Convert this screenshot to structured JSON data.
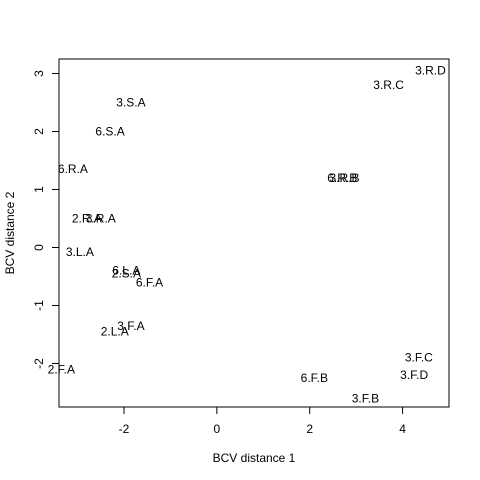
{
  "chart_data": {
    "type": "scatter",
    "title": "",
    "xlabel": "BCV distance 1",
    "ylabel": "BCV distance 2",
    "xlim": [
      -3.4,
      5.0
    ],
    "ylim": [
      -2.75,
      3.25
    ],
    "xticks": [
      -2,
      0,
      2,
      4
    ],
    "yticks": [
      -2,
      -1,
      0,
      1,
      2,
      3
    ],
    "grid": false,
    "marker": "text-label",
    "points": [
      {
        "label": "3.R.D",
        "x": 4.6,
        "y": 3.05
      },
      {
        "label": "3.R.C",
        "x": 3.7,
        "y": 2.8
      },
      {
        "label": "3.S.A",
        "x": -1.85,
        "y": 2.5
      },
      {
        "label": "6.S.A",
        "x": -2.3,
        "y": 2.0
      },
      {
        "label": "6.R.A",
        "x": -3.1,
        "y": 1.35
      },
      {
        "label": "6.R.B",
        "x": 2.7,
        "y": 1.2
      },
      {
        "label": "3.R.B",
        "x": 2.75,
        "y": 1.2
      },
      {
        "label": "2.R.A",
        "x": -2.8,
        "y": 0.5
      },
      {
        "label": "3.R.A",
        "x": -2.5,
        "y": 0.5
      },
      {
        "label": "3.L.A",
        "x": -2.95,
        "y": -0.08
      },
      {
        "label": "6.L.A",
        "x": -1.95,
        "y": -0.4
      },
      {
        "label": "2.S.A",
        "x": -1.95,
        "y": -0.45
      },
      {
        "label": "6.F.A",
        "x": -1.45,
        "y": -0.6
      },
      {
        "label": "3.F.A",
        "x": -1.85,
        "y": -1.35
      },
      {
        "label": "2.L.A",
        "x": -2.2,
        "y": -1.45
      },
      {
        "label": "3.F.C",
        "x": 4.35,
        "y": -1.9
      },
      {
        "label": "2.F.A",
        "x": -3.35,
        "y": -2.1
      },
      {
        "label": "3.F.D",
        "x": 4.25,
        "y": -2.2
      },
      {
        "label": "6.F.B",
        "x": 2.1,
        "y": -2.25
      },
      {
        "label": "3.F.B",
        "x": 3.2,
        "y": -2.6
      }
    ]
  }
}
